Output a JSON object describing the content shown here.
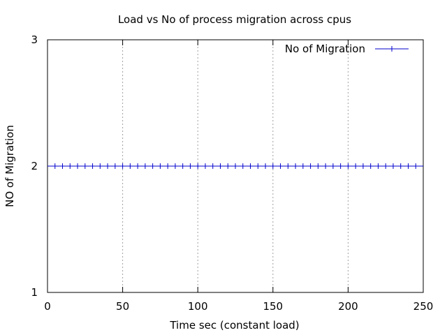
{
  "chart_data": {
    "type": "line",
    "title": "Load vs No of process migration across cpus",
    "xlabel": "Time sec (constant load)",
    "ylabel": "NO of Migration",
    "xlim": [
      0,
      250
    ],
    "ylim": [
      1,
      3
    ],
    "xticks": [
      0,
      50,
      100,
      150,
      200,
      250
    ],
    "yticks": [
      1,
      2,
      3
    ],
    "grid": "vertical dotted",
    "legend_position": "top-right",
    "series": [
      {
        "name": "No of Migration",
        "color": "#0000cc",
        "marker": "plus",
        "x": [
          5,
          10,
          15,
          20,
          25,
          30,
          35,
          40,
          45,
          50,
          55,
          60,
          65,
          70,
          75,
          80,
          85,
          90,
          95,
          100,
          105,
          110,
          115,
          120,
          125,
          130,
          135,
          140,
          145,
          150,
          155,
          160,
          165,
          170,
          175,
          180,
          185,
          190,
          195,
          200,
          205,
          210,
          215,
          220,
          225,
          230,
          235,
          240,
          245
        ],
        "y": [
          2,
          2,
          2,
          2,
          2,
          2,
          2,
          2,
          2,
          2,
          2,
          2,
          2,
          2,
          2,
          2,
          2,
          2,
          2,
          2,
          2,
          2,
          2,
          2,
          2,
          2,
          2,
          2,
          2,
          2,
          2,
          2,
          2,
          2,
          2,
          2,
          2,
          2,
          2,
          2,
          2,
          2,
          2,
          2,
          2,
          2,
          2,
          2,
          2
        ]
      }
    ]
  }
}
